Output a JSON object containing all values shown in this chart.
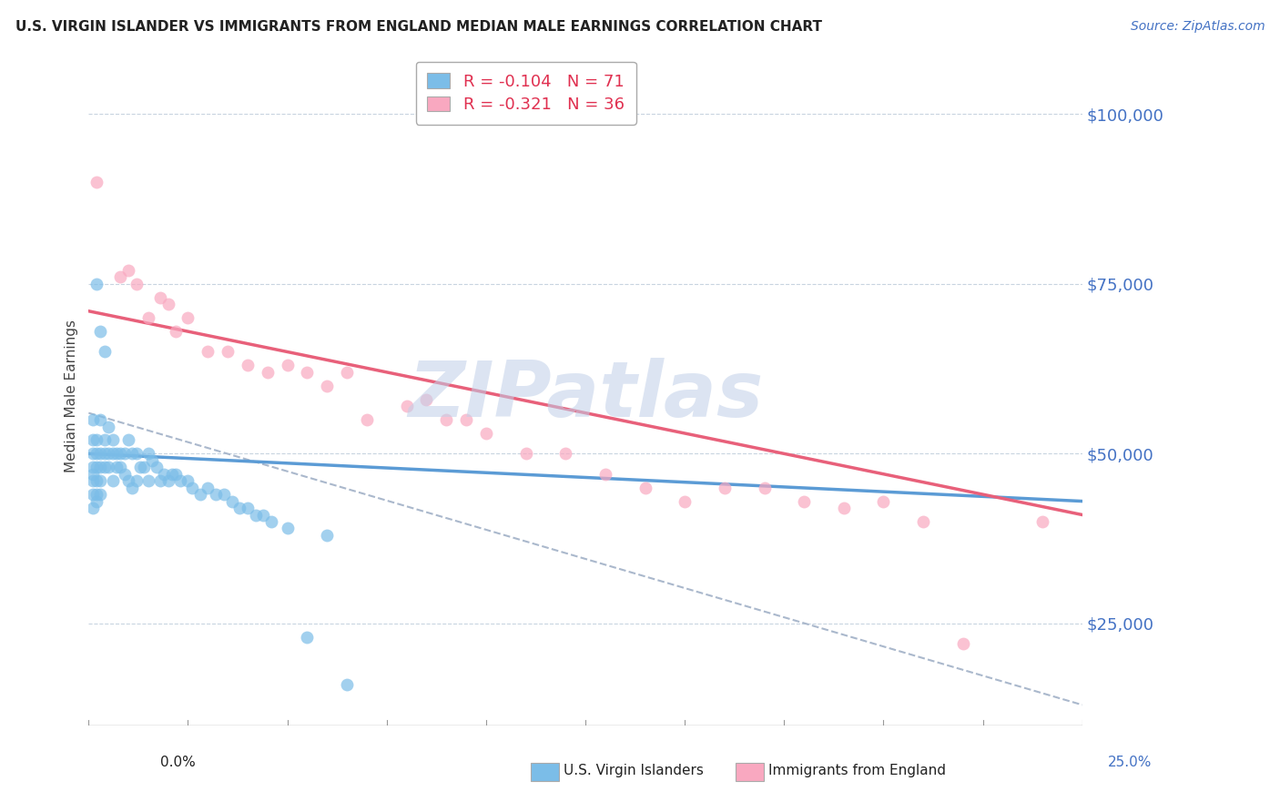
{
  "title": "U.S. VIRGIN ISLANDER VS IMMIGRANTS FROM ENGLAND MEDIAN MALE EARNINGS CORRELATION CHART",
  "source": "Source: ZipAtlas.com",
  "ylabel": "Median Male Earnings",
  "x_min": 0.0,
  "x_max": 0.25,
  "y_min": 10000,
  "y_max": 107000,
  "yticks": [
    25000,
    50000,
    75000,
    100000
  ],
  "ytick_labels": [
    "$25,000",
    "$50,000",
    "$75,000",
    "$100,000"
  ],
  "blue_R": -0.104,
  "blue_N": 71,
  "pink_R": -0.321,
  "pink_N": 36,
  "blue_color": "#7bbde8",
  "pink_color": "#f9a8c0",
  "blue_line_color": "#5b9bd5",
  "pink_line_color": "#e8607a",
  "dashed_line_color": "#aab8cc",
  "legend_label_blue": "U.S. Virgin Islanders",
  "legend_label_pink": "Immigrants from England",
  "watermark_text": "ZIPatlas",
  "blue_scatter_x": [
    0.001,
    0.001,
    0.001,
    0.001,
    0.001,
    0.001,
    0.001,
    0.001,
    0.002,
    0.002,
    0.002,
    0.002,
    0.002,
    0.002,
    0.002,
    0.003,
    0.003,
    0.003,
    0.003,
    0.003,
    0.003,
    0.004,
    0.004,
    0.004,
    0.004,
    0.005,
    0.005,
    0.005,
    0.006,
    0.006,
    0.006,
    0.007,
    0.007,
    0.008,
    0.008,
    0.009,
    0.009,
    0.01,
    0.01,
    0.011,
    0.011,
    0.012,
    0.012,
    0.013,
    0.014,
    0.015,
    0.015,
    0.016,
    0.017,
    0.018,
    0.019,
    0.02,
    0.021,
    0.022,
    0.023,
    0.025,
    0.026,
    0.028,
    0.03,
    0.032,
    0.034,
    0.036,
    0.038,
    0.04,
    0.042,
    0.044,
    0.046,
    0.05,
    0.055,
    0.06,
    0.065
  ],
  "blue_scatter_y": [
    52000,
    48000,
    46000,
    44000,
    55000,
    50000,
    47000,
    42000,
    75000,
    52000,
    50000,
    48000,
    46000,
    44000,
    43000,
    68000,
    55000,
    50000,
    48000,
    46000,
    44000,
    65000,
    52000,
    50000,
    48000,
    54000,
    50000,
    48000,
    52000,
    50000,
    46000,
    50000,
    48000,
    50000,
    48000,
    50000,
    47000,
    52000,
    46000,
    50000,
    45000,
    50000,
    46000,
    48000,
    48000,
    50000,
    46000,
    49000,
    48000,
    46000,
    47000,
    46000,
    47000,
    47000,
    46000,
    46000,
    45000,
    44000,
    45000,
    44000,
    44000,
    43000,
    42000,
    42000,
    41000,
    41000,
    40000,
    39000,
    23000,
    38000,
    16000
  ],
  "pink_scatter_x": [
    0.002,
    0.008,
    0.01,
    0.012,
    0.015,
    0.018,
    0.02,
    0.022,
    0.025,
    0.03,
    0.035,
    0.04,
    0.045,
    0.05,
    0.055,
    0.06,
    0.065,
    0.07,
    0.08,
    0.085,
    0.09,
    0.095,
    0.1,
    0.11,
    0.12,
    0.13,
    0.14,
    0.15,
    0.16,
    0.17,
    0.18,
    0.19,
    0.2,
    0.21,
    0.22,
    0.24
  ],
  "pink_scatter_y": [
    90000,
    76000,
    77000,
    75000,
    70000,
    73000,
    72000,
    68000,
    70000,
    65000,
    65000,
    63000,
    62000,
    63000,
    62000,
    60000,
    62000,
    55000,
    57000,
    58000,
    55000,
    55000,
    53000,
    50000,
    50000,
    47000,
    45000,
    43000,
    45000,
    45000,
    43000,
    42000,
    43000,
    40000,
    22000,
    40000
  ],
  "blue_trend_x": [
    0.0,
    0.25
  ],
  "blue_trend_y": [
    50000,
    43000
  ],
  "pink_trend_x": [
    0.0,
    0.25
  ],
  "pink_trend_y": [
    71000,
    41000
  ],
  "dashed_trend_x": [
    0.0,
    0.25
  ],
  "dashed_trend_y": [
    56000,
    13000
  ]
}
